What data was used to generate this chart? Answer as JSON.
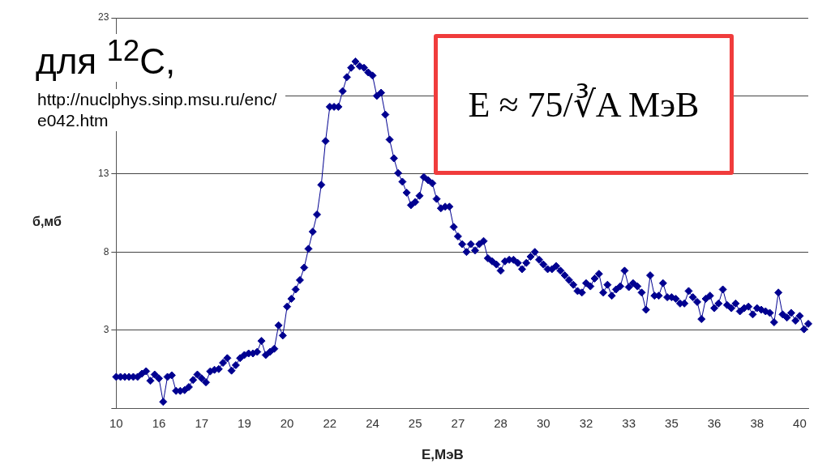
{
  "chart_data": {
    "type": "line",
    "title": "для $^{12}$C,",
    "xlabel": "E,МэВ",
    "ylabel": "б,мб",
    "annotations": [
      "http://nuclphys.sinp.msu.ru/enc/e042.htm",
      "E ≈ 75/∛A МэВ"
    ],
    "categories": [
      "10",
      null,
      null,
      null,
      null,
      null,
      null,
      null,
      null,
      null,
      "16",
      null,
      null,
      null,
      null,
      null,
      null,
      null,
      null,
      null,
      "17",
      null,
      null,
      null,
      null,
      null,
      null,
      null,
      null,
      null,
      "19",
      null,
      null,
      null,
      null,
      null,
      null,
      null,
      null,
      null,
      "20",
      null,
      null,
      null,
      null,
      null,
      null,
      null,
      null,
      null,
      "22",
      null,
      null,
      null,
      null,
      null,
      null,
      null,
      null,
      null,
      "24",
      null,
      null,
      null,
      null,
      null,
      null,
      null,
      null,
      null,
      "25",
      null,
      null,
      null,
      null,
      null,
      null,
      null,
      null,
      null,
      "27",
      null,
      null,
      null,
      null,
      null,
      null,
      null,
      null,
      null,
      "28",
      null,
      null,
      null,
      null,
      null,
      null,
      null,
      null,
      null,
      "30",
      null,
      null,
      null,
      null,
      null,
      null,
      null,
      null,
      null,
      "32",
      null,
      null,
      null,
      null,
      null,
      null,
      null,
      null,
      null,
      "33",
      null,
      null,
      null,
      null,
      null,
      null,
      null,
      null,
      null,
      "35",
      null,
      null,
      null,
      null,
      null,
      null,
      null,
      null,
      null,
      "36",
      null,
      null,
      null,
      null,
      null,
      null,
      null,
      null,
      null,
      "38",
      null,
      null,
      null,
      null,
      null,
      null,
      null,
      null,
      null,
      "40",
      null,
      null
    ],
    "series": [
      {
        "color": "#000090",
        "values": [
          0.0,
          0.0,
          0.0,
          0.0,
          0.0,
          0.0,
          0.2,
          0.36,
          -0.25,
          0.15,
          -0.1,
          -1.6,
          0.0,
          0.1,
          -0.9,
          -0.9,
          -0.85,
          -0.65,
          -0.2,
          0.15,
          -0.1,
          -0.35,
          0.35,
          0.45,
          0.5,
          0.9,
          1.2,
          0.4,
          0.75,
          1.2,
          1.4,
          1.5,
          1.5,
          1.6,
          2.3,
          1.4,
          1.6,
          1.8,
          3.3,
          2.65,
          4.5,
          5.0,
          5.6,
          6.2,
          7.0,
          8.2,
          9.3,
          10.4,
          12.3,
          15.1,
          17.3,
          17.3,
          17.3,
          18.3,
          19.2,
          19.8,
          20.2,
          19.9,
          19.8,
          19.5,
          19.3,
          18.0,
          18.2,
          16.8,
          15.2,
          14.0,
          13.05,
          12.5,
          11.8,
          11.0,
          11.2,
          11.6,
          12.8,
          12.6,
          12.4,
          11.4,
          10.8,
          10.9,
          10.9,
          9.6,
          9.0,
          8.5,
          8.0,
          8.5,
          8.1,
          8.5,
          8.7,
          7.6,
          7.4,
          7.2,
          6.8,
          7.4,
          7.5,
          7.5,
          7.3,
          6.9,
          7.3,
          7.7,
          8.0,
          7.5,
          7.2,
          6.9,
          6.9,
          7.1,
          6.8,
          6.5,
          6.2,
          5.9,
          5.5,
          5.4,
          6.0,
          5.8,
          6.3,
          6.6,
          5.4,
          5.9,
          5.2,
          5.6,
          5.8,
          6.8,
          5.75,
          6.0,
          5.8,
          5.4,
          4.3,
          6.5,
          5.2,
          5.2,
          6.0,
          5.1,
          5.1,
          5.0,
          4.7,
          4.7,
          5.5,
          5.1,
          4.8,
          3.7,
          5.0,
          5.2,
          4.4,
          4.7,
          5.6,
          4.6,
          4.4,
          4.7,
          4.2,
          4.4,
          4.5,
          4.0,
          4.4,
          4.3,
          4.2,
          4.1,
          3.5,
          5.4,
          4.0,
          3.8,
          4.1,
          3.6,
          3.9,
          3.05,
          3.4
        ]
      }
    ],
    "ylim": [
      -2,
      23
    ],
    "yticks": [
      {
        "value": -2,
        "label": null
      },
      3,
      8,
      13,
      {
        "value": 18,
        "label": null
      },
      23
    ],
    "grid": "y",
    "legend": false,
    "marker": "diamond",
    "line_style": "solid"
  }
}
